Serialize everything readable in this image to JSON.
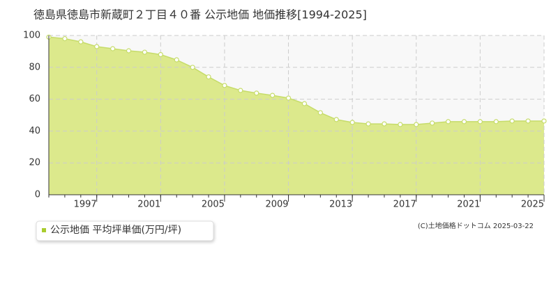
{
  "chart_data": {
    "type": "area",
    "title": "徳島県徳島市新蔵町２丁目４０番 公示地価 地価推移[1994-2025]",
    "x": [
      1994,
      1995,
      1996,
      1997,
      1998,
      1999,
      2000,
      2001,
      2002,
      2003,
      2004,
      2005,
      2006,
      2007,
      2008,
      2009,
      2010,
      2011,
      2012,
      2013,
      2014,
      2015,
      2016,
      2017,
      2018,
      2019,
      2020,
      2021,
      2022,
      2023,
      2024,
      2025
    ],
    "series": [
      {
        "name": "公示地価 平均坪単価(万円/坪)",
        "color": "#a9cc2e",
        "values": [
          99,
          98,
          96,
          93,
          91.7,
          90.4,
          89.5,
          88,
          84.7,
          80,
          74,
          68.6,
          65.5,
          63.8,
          62.4,
          60.7,
          57.2,
          51.5,
          47.2,
          45.4,
          44.5,
          44.5,
          44.1,
          44.1,
          45,
          45.9,
          45.9,
          45.9,
          45.9,
          46.3,
          46.3,
          46.3
        ]
      }
    ],
    "xlim": [
      1994,
      2025
    ],
    "xticks": [
      1997,
      2001,
      2005,
      2009,
      2013,
      2017,
      2021,
      2025
    ],
    "ylim": [
      0,
      100
    ],
    "yticks": [
      0,
      20,
      40,
      60,
      80,
      100
    ],
    "grid": true,
    "source": "(C)土地価格ドットコム 2025-03-22"
  }
}
